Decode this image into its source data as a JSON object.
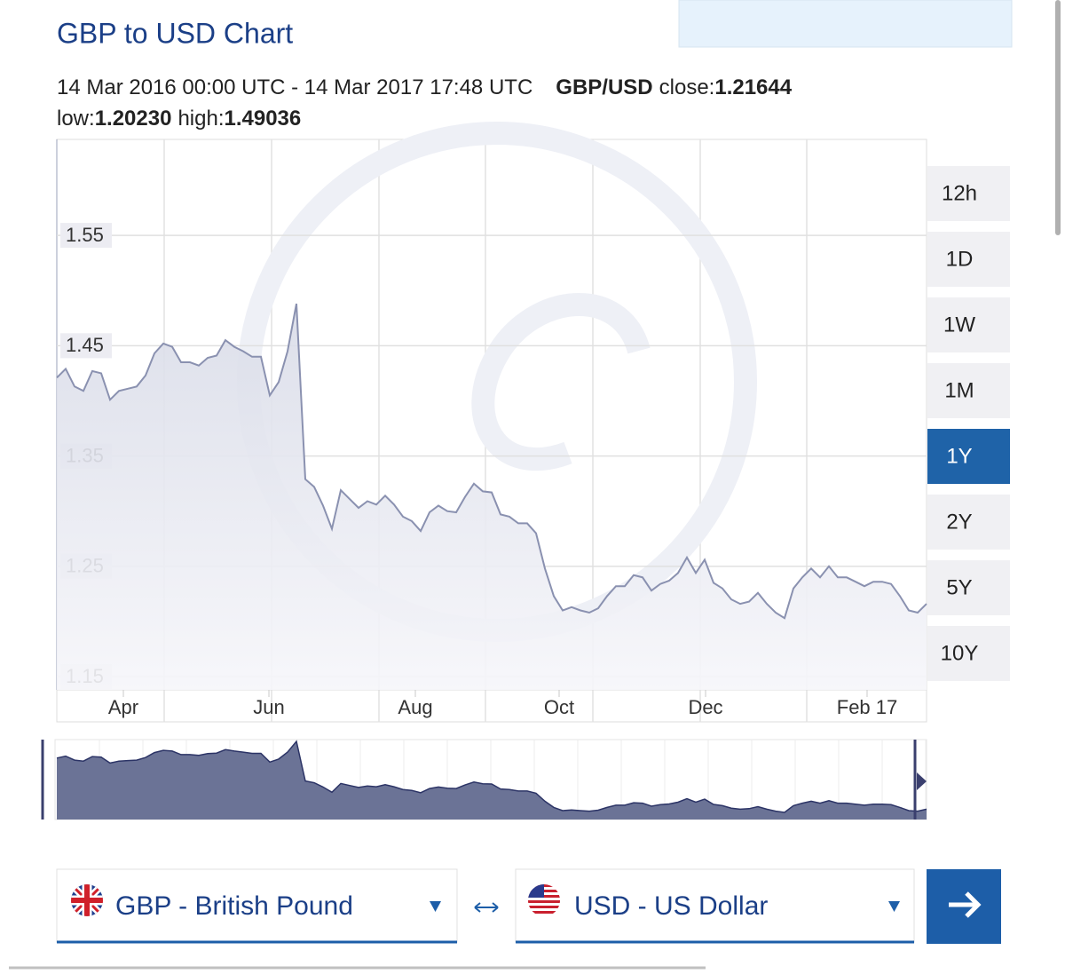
{
  "header": {
    "title": "GBP to USD Chart"
  },
  "summary": {
    "range": "14 Mar 2016 00:00 UTC - 14 Mar 2017 17:48 UTC",
    "pair": "GBP/USD",
    "close_label": "close:",
    "close": "1.21644",
    "low_label": "low:",
    "low": "1.20230",
    "high_label": "high:",
    "high": "1.49036"
  },
  "chart_data": {
    "type": "line",
    "ylim": [
      1.138,
      1.637
    ],
    "yticks": [
      1.15,
      1.25,
      1.35,
      1.45,
      1.55
    ],
    "xlim": [
      0,
      98
    ],
    "xticks": [
      {
        "value": 7.5,
        "label": "Apr"
      },
      {
        "value": 23.9,
        "label": "Jun"
      },
      {
        "value": 40.4,
        "label": "Aug"
      },
      {
        "value": 56.6,
        "label": "Oct"
      },
      {
        "value": 73.1,
        "label": "Dec"
      },
      {
        "value": 91.3,
        "label": "Feb 17"
      }
    ],
    "grid": true,
    "series": [
      {
        "color": "#8a91b0",
        "values": [
          1.421,
          1.429,
          1.413,
          1.409,
          1.427,
          1.425,
          1.401,
          1.409,
          1.411,
          1.413,
          1.423,
          1.443,
          1.452,
          1.449,
          1.435,
          1.435,
          1.432,
          1.439,
          1.441,
          1.455,
          1.449,
          1.445,
          1.44,
          1.44,
          1.405,
          1.417,
          1.445,
          1.488,
          1.329,
          1.322,
          1.305,
          1.284,
          1.319,
          1.311,
          1.303,
          1.309,
          1.306,
          1.314,
          1.306,
          1.295,
          1.291,
          1.282,
          1.299,
          1.305,
          1.3,
          1.299,
          1.313,
          1.325,
          1.318,
          1.317,
          1.297,
          1.295,
          1.289,
          1.289,
          1.28,
          1.248,
          1.223,
          1.21,
          1.213,
          1.21,
          1.208,
          1.212,
          1.223,
          1.232,
          1.232,
          1.242,
          1.24,
          1.228,
          1.234,
          1.237,
          1.244,
          1.258,
          1.244,
          1.256,
          1.235,
          1.23,
          1.22,
          1.216,
          1.218,
          1.226,
          1.216,
          1.208,
          1.203,
          1.23,
          1.24,
          1.248,
          1.24,
          1.25,
          1.24,
          1.24,
          1.236,
          1.232,
          1.236,
          1.236,
          1.234,
          1.223,
          1.21,
          1.208,
          1.216
        ]
      }
    ]
  },
  "periods": [
    "12h",
    "1D",
    "1W",
    "1M",
    "1Y",
    "2Y",
    "5Y",
    "10Y"
  ],
  "active_period": "1Y",
  "converter": {
    "from": "GBP - British Pound",
    "to": "USD - US Dollar"
  }
}
